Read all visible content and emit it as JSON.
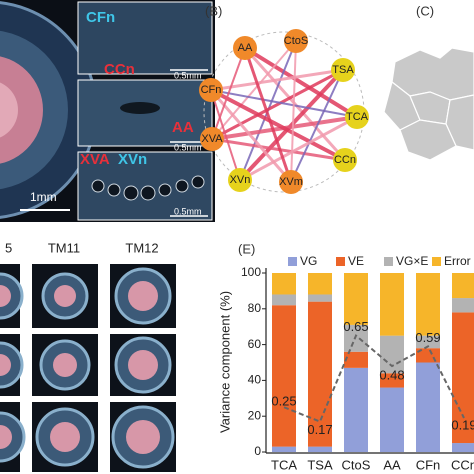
{
  "panel_a": {
    "labels": [
      "CFn",
      "CCn",
      "AA",
      "XVA",
      "XVn"
    ],
    "scales": [
      "0.5mm",
      "0.5mm",
      "0.5mm",
      "1mm"
    ]
  },
  "panel_b": {
    "label": "(B)",
    "nodes": [
      {
        "name": "AA",
        "color": "#f0892a"
      },
      {
        "name": "CtoS",
        "color": "#f0892a"
      },
      {
        "name": "TSA",
        "color": "#e6d21c"
      },
      {
        "name": "TCA",
        "color": "#e6d21c"
      },
      {
        "name": "CCn",
        "color": "#e6d21c"
      },
      {
        "name": "XVm",
        "color": "#f0892a"
      },
      {
        "name": "XVn",
        "color": "#e6d21c"
      },
      {
        "name": "XVA",
        "color": "#f0892a"
      },
      {
        "name": "CFn",
        "color": "#f0892a"
      }
    ]
  },
  "panel_c": {
    "label": "(C)"
  },
  "panel_d": {
    "labels": [
      "5",
      "TM11",
      "TM12"
    ]
  },
  "panel_e": {
    "label": "(E)"
  },
  "chart_data": {
    "type": "bar",
    "y_label": "Variance component (%)",
    "categories": [
      "TCA",
      "TSA",
      "CtoS",
      "AA",
      "CFn",
      "CCn"
    ],
    "series": [
      {
        "name": "VG",
        "color": "#919fd9",
        "values": [
          3,
          3,
          47,
          36,
          50,
          5
        ]
      },
      {
        "name": "VE",
        "color": "#ec6428",
        "values": [
          79,
          81,
          9,
          8,
          8,
          73
        ]
      },
      {
        "name": "VG×E",
        "color": "#b3b3b3",
        "values": [
          6,
          4,
          15,
          21,
          7,
          8
        ]
      },
      {
        "name": "Error",
        "color": "#f6b52a",
        "values": [
          12,
          12,
          29,
          35,
          35,
          14
        ]
      }
    ],
    "heritability": {
      "values": [
        0.25,
        0.17,
        0.65,
        0.48,
        0.59,
        0.19
      ],
      "axis": "y2",
      "color": "#666666"
    },
    "ylim": [
      0,
      100
    ],
    "yticks": [
      0,
      20,
      40,
      60,
      80,
      100
    ],
    "y2lim": [
      0,
      1
    ]
  }
}
